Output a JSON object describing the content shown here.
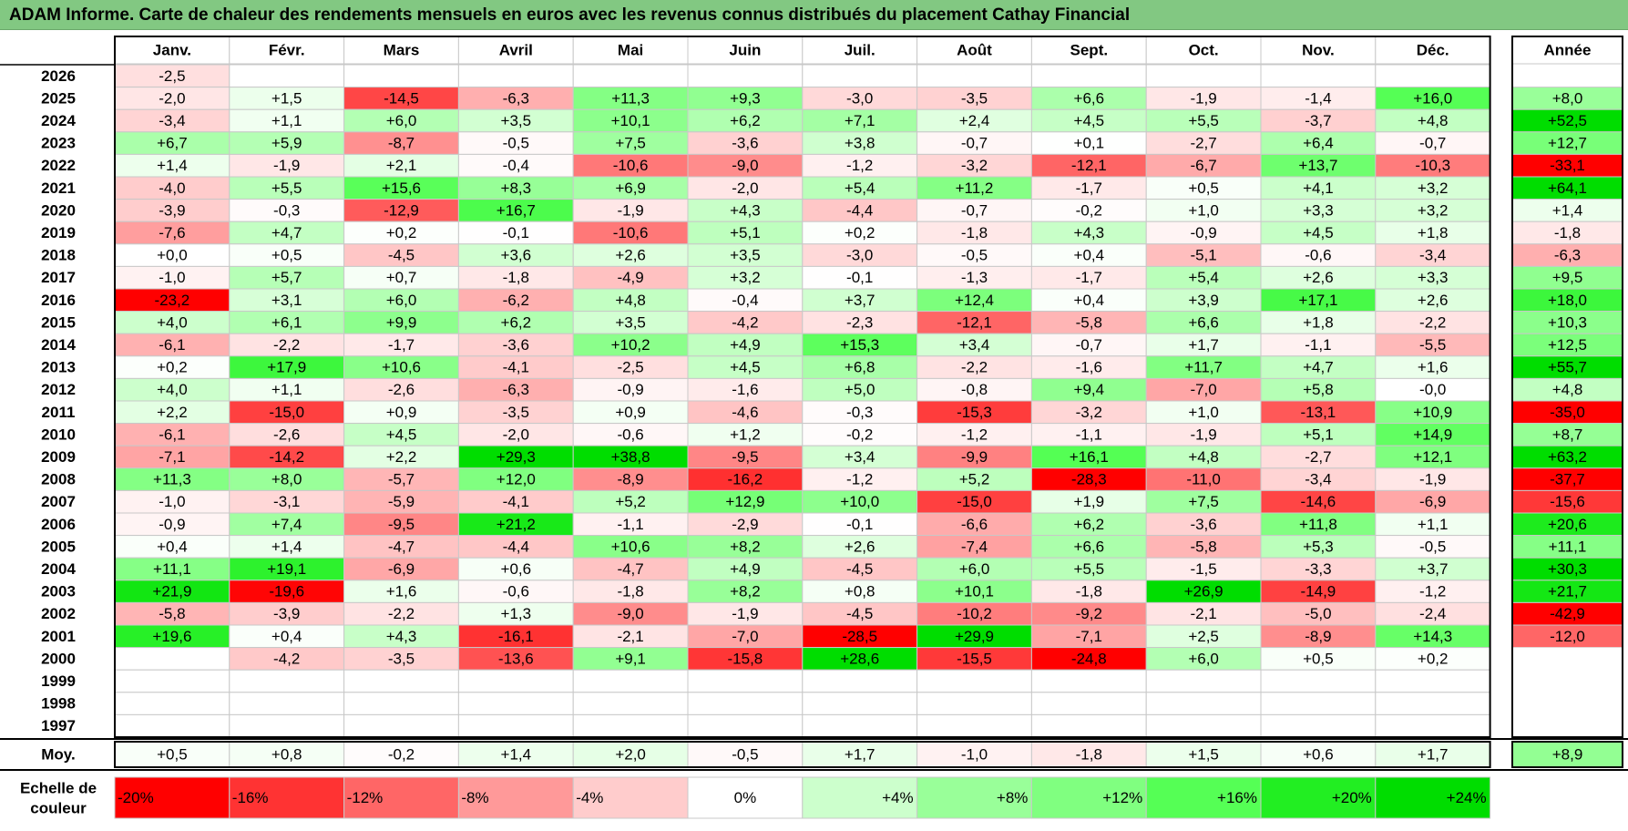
{
  "title": "ADAM Informe. Carte de chaleur des rendements mensuels en euros avec les revenus connus distribués du placement Cathay Financial",
  "chart_data": {
    "type": "heatmap",
    "months": [
      "Janv.",
      "Févr.",
      "Mars",
      "Avril",
      "Mai",
      "Juin",
      "Juil.",
      "Août",
      "Sept.",
      "Oct.",
      "Nov.",
      "Déc."
    ],
    "year_header": "Année",
    "rows": [
      {
        "year": "2026",
        "values": [
          "-2,5",
          "",
          "",
          "",
          "",
          "",
          "",
          "",
          "",
          "",
          "",
          ""
        ],
        "annual": ""
      },
      {
        "year": "2025",
        "values": [
          "-2,0",
          "+1,5",
          "-14,5",
          "-6,3",
          "+11,3",
          "+9,3",
          "-3,0",
          "-3,5",
          "+6,6",
          "-1,9",
          "-1,4",
          "+16,0"
        ],
        "annual": "+8,0"
      },
      {
        "year": "2024",
        "values": [
          "-3,4",
          "+1,1",
          "+6,0",
          "+3,5",
          "+10,1",
          "+6,2",
          "+7,1",
          "+2,4",
          "+4,5",
          "+5,5",
          "-3,7",
          "+4,8"
        ],
        "annual": "+52,5"
      },
      {
        "year": "2023",
        "values": [
          "+6,7",
          "+5,9",
          "-8,7",
          "-0,5",
          "+7,5",
          "-3,6",
          "+3,8",
          "-0,7",
          "+0,1",
          "-2,7",
          "+6,4",
          "-0,7"
        ],
        "annual": "+12,7"
      },
      {
        "year": "2022",
        "values": [
          "+1,4",
          "-1,9",
          "+2,1",
          "-0,4",
          "-10,6",
          "-9,0",
          "-1,2",
          "-3,2",
          "-12,1",
          "-6,7",
          "+13,7",
          "-10,3"
        ],
        "annual": "-33,1"
      },
      {
        "year": "2021",
        "values": [
          "-4,0",
          "+5,5",
          "+15,6",
          "+8,3",
          "+6,9",
          "-2,0",
          "+5,4",
          "+11,2",
          "-1,7",
          "+0,5",
          "+4,1",
          "+3,2"
        ],
        "annual": "+64,1"
      },
      {
        "year": "2020",
        "values": [
          "-3,9",
          "-0,3",
          "-12,9",
          "+16,7",
          "-1,9",
          "+4,3",
          "-4,4",
          "-0,7",
          "-0,2",
          "+1,0",
          "+3,3",
          "+3,2"
        ],
        "annual": "+1,4"
      },
      {
        "year": "2019",
        "values": [
          "-7,6",
          "+4,7",
          "+0,2",
          "-0,1",
          "-10,6",
          "+5,1",
          "+0,2",
          "-1,8",
          "+4,3",
          "-0,9",
          "+4,5",
          "+1,8"
        ],
        "annual": "-1,8"
      },
      {
        "year": "2018",
        "values": [
          "+0,0",
          "+0,5",
          "-4,5",
          "+3,6",
          "+2,6",
          "+3,5",
          "-3,0",
          "-0,5",
          "+0,4",
          "-5,1",
          "-0,6",
          "-3,4"
        ],
        "annual": "-6,3"
      },
      {
        "year": "2017",
        "values": [
          "-1,0",
          "+5,7",
          "+0,7",
          "-1,8",
          "-4,9",
          "+3,2",
          "-0,1",
          "-1,3",
          "-1,7",
          "+5,4",
          "+2,6",
          "+3,3"
        ],
        "annual": "+9,5"
      },
      {
        "year": "2016",
        "values": [
          "-23,2",
          "+3,1",
          "+6,0",
          "-6,2",
          "+4,8",
          "-0,4",
          "+3,7",
          "+12,4",
          "+0,4",
          "+3,9",
          "+17,1",
          "+2,6"
        ],
        "annual": "+18,0"
      },
      {
        "year": "2015",
        "values": [
          "+4,0",
          "+6,1",
          "+9,9",
          "+6,2",
          "+3,5",
          "-4,2",
          "-2,3",
          "-12,1",
          "-5,8",
          "+6,6",
          "+1,8",
          "-2,2"
        ],
        "annual": "+10,3"
      },
      {
        "year": "2014",
        "values": [
          "-6,1",
          "-2,2",
          "-1,7",
          "-3,6",
          "+10,2",
          "+4,9",
          "+15,3",
          "+3,4",
          "-0,7",
          "+1,7",
          "-1,1",
          "-5,5"
        ],
        "annual": "+12,5"
      },
      {
        "year": "2013",
        "values": [
          "+0,2",
          "+17,9",
          "+10,6",
          "-4,1",
          "-2,5",
          "+4,5",
          "+6,8",
          "-2,2",
          "-1,6",
          "+11,7",
          "+4,7",
          "+1,6"
        ],
        "annual": "+55,7"
      },
      {
        "year": "2012",
        "values": [
          "+4,0",
          "+1,1",
          "-2,6",
          "-6,3",
          "-0,9",
          "-1,6",
          "+5,0",
          "-0,8",
          "+9,4",
          "-7,0",
          "+5,8",
          "-0,0"
        ],
        "annual": "+4,8"
      },
      {
        "year": "2011",
        "values": [
          "+2,2",
          "-15,0",
          "+0,9",
          "-3,5",
          "+0,9",
          "-4,6",
          "-0,3",
          "-15,3",
          "-3,2",
          "+1,0",
          "-13,1",
          "+10,9"
        ],
        "annual": "-35,0"
      },
      {
        "year": "2010",
        "values": [
          "-6,1",
          "-2,6",
          "+4,5",
          "-2,0",
          "-0,6",
          "+1,2",
          "-0,2",
          "-1,2",
          "-1,1",
          "-1,9",
          "+5,1",
          "+14,9"
        ],
        "annual": "+8,7"
      },
      {
        "year": "2009",
        "values": [
          "-7,1",
          "-14,2",
          "+2,2",
          "+29,3",
          "+38,8",
          "-9,5",
          "+3,4",
          "-9,9",
          "+16,1",
          "+4,8",
          "-2,7",
          "+12,1"
        ],
        "annual": "+63,2"
      },
      {
        "year": "2008",
        "values": [
          "+11,3",
          "+8,0",
          "-5,7",
          "+12,0",
          "-8,9",
          "-16,2",
          "-1,2",
          "+5,2",
          "-28,3",
          "-11,0",
          "-3,4",
          "-1,9"
        ],
        "annual": "-37,7"
      },
      {
        "year": "2007",
        "values": [
          "-1,0",
          "-3,1",
          "-5,9",
          "-4,1",
          "+5,2",
          "+12,9",
          "+10,0",
          "-15,0",
          "+1,9",
          "+7,5",
          "-14,6",
          "-6,9"
        ],
        "annual": "-15,6"
      },
      {
        "year": "2006",
        "values": [
          "-0,9",
          "+7,4",
          "-9,5",
          "+21,2",
          "-1,1",
          "-2,9",
          "-0,1",
          "-6,6",
          "+6,2",
          "-3,6",
          "+11,8",
          "+1,1"
        ],
        "annual": "+20,6"
      },
      {
        "year": "2005",
        "values": [
          "+0,4",
          "+1,4",
          "-4,7",
          "-4,4",
          "+10,6",
          "+8,2",
          "+2,6",
          "-7,4",
          "+6,6",
          "-5,8",
          "+5,3",
          "-0,5"
        ],
        "annual": "+11,1"
      },
      {
        "year": "2004",
        "values": [
          "+11,1",
          "+19,1",
          "-6,9",
          "+0,6",
          "-4,7",
          "+4,9",
          "-4,5",
          "+6,0",
          "+5,5",
          "-1,5",
          "-3,3",
          "+3,7"
        ],
        "annual": "+30,3"
      },
      {
        "year": "2003",
        "values": [
          "+21,9",
          "-19,6",
          "+1,6",
          "-0,6",
          "-1,8",
          "+8,2",
          "+0,8",
          "+10,1",
          "-1,8",
          "+26,9",
          "-14,9",
          "-1,2"
        ],
        "annual": "+21,7"
      },
      {
        "year": "2002",
        "values": [
          "-5,8",
          "-3,9",
          "-2,2",
          "+1,3",
          "-9,0",
          "-1,9",
          "-4,5",
          "-10,2",
          "-9,2",
          "-2,1",
          "-5,0",
          "-2,4"
        ],
        "annual": "-42,9"
      },
      {
        "year": "2001",
        "values": [
          "+19,6",
          "+0,4",
          "+4,3",
          "-16,1",
          "-2,1",
          "-7,0",
          "-28,5",
          "+29,9",
          "-7,1",
          "+2,5",
          "-8,9",
          "+14,3"
        ],
        "annual": "-12,0"
      },
      {
        "year": "2000",
        "values": [
          "",
          "-4,2",
          "-3,5",
          "-13,6",
          "+9,1",
          "-15,8",
          "+28,6",
          "-15,5",
          "-24,8",
          "+6,0",
          "+0,5",
          "+0,2"
        ],
        "annual": ""
      },
      {
        "year": "1999",
        "values": [
          "",
          "",
          "",
          "",
          "",
          "",
          "",
          "",
          "",
          "",
          "",
          ""
        ],
        "annual": ""
      },
      {
        "year": "1998",
        "values": [
          "",
          "",
          "",
          "",
          "",
          "",
          "",
          "",
          "",
          "",
          "",
          ""
        ],
        "annual": ""
      },
      {
        "year": "1997",
        "values": [
          "",
          "",
          "",
          "",
          "",
          "",
          "",
          "",
          "",
          "",
          "",
          ""
        ],
        "annual": ""
      }
    ],
    "average": {
      "label": "Moy.",
      "values": [
        "+0,5",
        "+0,8",
        "-0,2",
        "+1,4",
        "+2,0",
        "-0,5",
        "+1,7",
        "-1,0",
        "-1,8",
        "+1,5",
        "+0,6",
        "+1,7"
      ],
      "annual": "+8,9"
    },
    "scale": {
      "label_line1": "Echelle de",
      "label_line2": "couleur",
      "stops": [
        {
          "label": "-20%",
          "value": -20,
          "color": "#ff0000"
        },
        {
          "label": "-16%",
          "value": -16,
          "color": "#ff3333"
        },
        {
          "label": "-12%",
          "value": -12,
          "color": "#ff6666"
        },
        {
          "label": "-8%",
          "value": -8,
          "color": "#ff9999"
        },
        {
          "label": "-4%",
          "value": -4,
          "color": "#ffcccc"
        },
        {
          "label": "0%",
          "value": 0,
          "color": "#ffffff"
        },
        {
          "label": "+4%",
          "value": 4,
          "color": "#ccffcc"
        },
        {
          "label": "+8%",
          "value": 8,
          "color": "#99ff99"
        },
        {
          "label": "+12%",
          "value": 12,
          "color": "#80ff80"
        },
        {
          "label": "+16%",
          "value": 16,
          "color": "#55ff55"
        },
        {
          "label": "+20%",
          "value": 20,
          "color": "#22ee22"
        },
        {
          "label": "+24%",
          "value": 24,
          "color": "#00dd00"
        }
      ]
    }
  }
}
